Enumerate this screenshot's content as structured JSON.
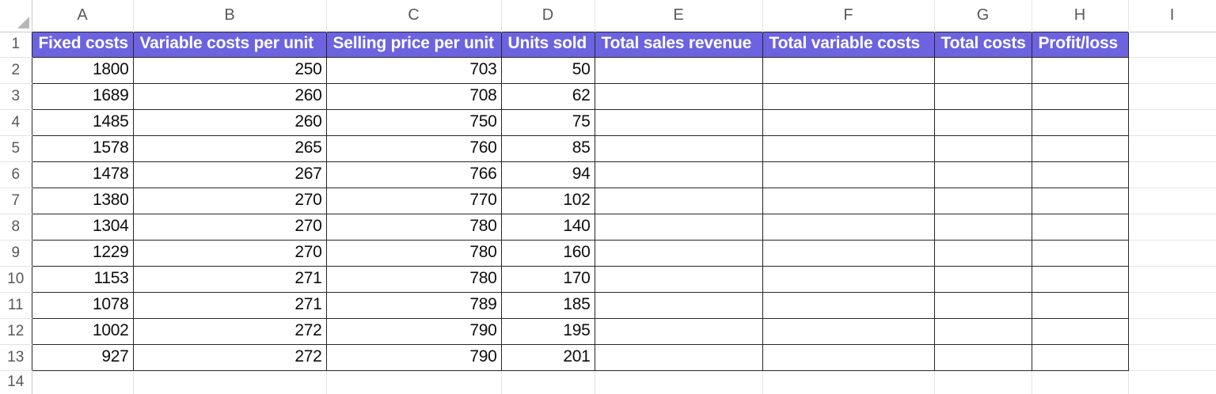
{
  "sheet": {
    "name": "break-even-worksheet",
    "column_letters": [
      "A",
      "B",
      "C",
      "D",
      "E",
      "F",
      "G",
      "H",
      "I"
    ],
    "row_numbers": [
      "1",
      "2",
      "3",
      "4",
      "5",
      "6",
      "7",
      "8",
      "9",
      "10",
      "11",
      "12",
      "13",
      "14"
    ],
    "header_row": {
      "row_number": "1",
      "labels": [
        "Fixed costs",
        "Variable costs per unit",
        "Selling price per unit",
        "Units sold",
        "Total sales revenue",
        "Total variable costs",
        "Total costs",
        "Profit/loss"
      ]
    },
    "data_rows": [
      {
        "row_number": "2",
        "cells": [
          "1800",
          "250",
          "703",
          "50",
          "",
          "",
          "",
          ""
        ]
      },
      {
        "row_number": "3",
        "cells": [
          "1689",
          "260",
          "708",
          "62",
          "",
          "",
          "",
          ""
        ]
      },
      {
        "row_number": "4",
        "cells": [
          "1485",
          "260",
          "750",
          "75",
          "",
          "",
          "",
          ""
        ]
      },
      {
        "row_number": "5",
        "cells": [
          "1578",
          "265",
          "760",
          "85",
          "",
          "",
          "",
          ""
        ]
      },
      {
        "row_number": "6",
        "cells": [
          "1478",
          "267",
          "766",
          "94",
          "",
          "",
          "",
          ""
        ]
      },
      {
        "row_number": "7",
        "cells": [
          "1380",
          "270",
          "770",
          "102",
          "",
          "",
          "",
          ""
        ]
      },
      {
        "row_number": "8",
        "cells": [
          "1304",
          "270",
          "780",
          "140",
          "",
          "",
          "",
          ""
        ]
      },
      {
        "row_number": "9",
        "cells": [
          "1229",
          "270",
          "780",
          "160",
          "",
          "",
          "",
          ""
        ]
      },
      {
        "row_number": "10",
        "cells": [
          "1153",
          "271",
          "780",
          "170",
          "",
          "",
          "",
          ""
        ]
      },
      {
        "row_number": "11",
        "cells": [
          "1078",
          "271",
          "789",
          "185",
          "",
          "",
          "",
          ""
        ]
      },
      {
        "row_number": "12",
        "cells": [
          "1002",
          "272",
          "790",
          "195",
          "",
          "",
          "",
          ""
        ]
      },
      {
        "row_number": "13",
        "cells": [
          "927",
          "272",
          "790",
          "201",
          "",
          "",
          "",
          ""
        ]
      }
    ],
    "empty_row": {
      "row_number": "14",
      "cells": [
        "",
        "",
        "",
        "",
        "",
        "",
        "",
        "",
        ""
      ]
    },
    "icons": {
      "select_all": "select-all-triangle"
    },
    "colors": {
      "header_fill": "#6C63E0",
      "header_text": "#FFFFFF",
      "cell_border": "#262626",
      "gridline": "#E4E4E4",
      "heading_text": "#595959"
    }
  }
}
